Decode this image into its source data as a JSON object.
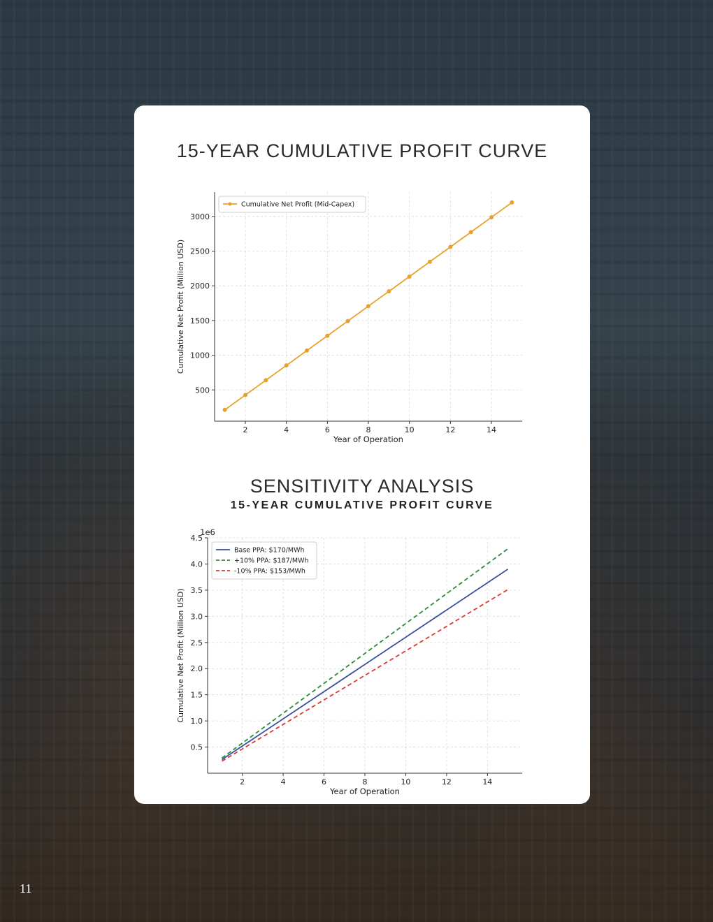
{
  "page": {
    "number": "11"
  },
  "sections": {
    "profit_title": "15-YEAR CUMULATIVE PROFIT CURVE",
    "sensitivity_title": "SENSITIVITY ANALYSIS",
    "sensitivity_subtitle": "15-YEAR CUMULATIVE PROFIT CURVE"
  },
  "colors": {
    "profit_line": "#e8a22b",
    "base": "#3b4fa0",
    "plus10": "#2a8a3a",
    "minus10": "#d93a32",
    "grid": "#d8d8d8"
  },
  "chart_data": [
    {
      "type": "line",
      "title": "",
      "xlabel": "Year of Operation",
      "ylabel": "Cumulative Net Profit (Million USD)",
      "xlim": [
        0.5,
        15.5
      ],
      "ylim": [
        50,
        3350
      ],
      "xticks": [
        2,
        4,
        6,
        8,
        10,
        12,
        14
      ],
      "yticks": [
        500,
        1000,
        1500,
        2000,
        2500,
        3000
      ],
      "grid": true,
      "legend": "top-left",
      "series": [
        {
          "name": "Cumulative Net Profit (Mid-Capex)",
          "x": [
            1,
            2,
            3,
            4,
            5,
            6,
            7,
            8,
            9,
            10,
            11,
            12,
            13,
            14,
            15
          ],
          "values": [
            213,
            427,
            640,
            853,
            1067,
            1280,
            1493,
            1707,
            1920,
            2133,
            2347,
            2560,
            2773,
            2987,
            3200
          ],
          "style": "solid-marker"
        }
      ]
    },
    {
      "type": "line",
      "title": "",
      "xlabel": "Year of Operation",
      "ylabel": "Cumulative Net Profit (Million USD)",
      "scale_note": "1e6",
      "xlim": [
        0.3,
        15.7
      ],
      "ylim": [
        0,
        4.5
      ],
      "xticks": [
        2,
        4,
        6,
        8,
        10,
        12,
        14
      ],
      "yticks": [
        "0.5",
        "1.0",
        "1.5",
        "2.0",
        "2.5",
        "3.0",
        "3.5",
        "4.0",
        "4.5"
      ],
      "grid": true,
      "legend": "top-left",
      "series": [
        {
          "name": "Base PPA: $170/MWh",
          "x": [
            1,
            15
          ],
          "values": [
            0.26,
            3.9
          ],
          "style": "solid"
        },
        {
          "name": "+10% PPA: $187/MWh",
          "x": [
            1,
            15
          ],
          "values": [
            0.29,
            4.29
          ],
          "style": "dashed"
        },
        {
          "name": "-10% PPA: $153/MWh",
          "x": [
            1,
            15
          ],
          "values": [
            0.23,
            3.51
          ],
          "style": "dashed"
        }
      ]
    }
  ]
}
